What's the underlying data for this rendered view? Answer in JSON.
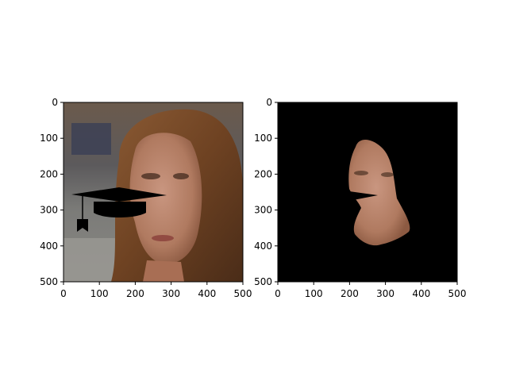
{
  "figure": {
    "panels": [
      {
        "image_description_icon": "portrait-with-graduation-cap-overlay",
        "content": "original-photo"
      },
      {
        "image_description_icon": "face-mask-on-black",
        "content": "masked-face"
      }
    ]
  },
  "chart_data": [
    {
      "type": "image",
      "title": "",
      "xlabel": "",
      "ylabel": "",
      "xlim": [
        0,
        500
      ],
      "ylim": [
        500,
        0
      ],
      "xticks": [
        0,
        100,
        200,
        300,
        400,
        500
      ],
      "yticks": [
        0,
        100,
        200,
        300,
        400,
        500
      ],
      "grid": false,
      "colors": {
        "background_left": "#5a4a3e",
        "hair": "#7a4a26",
        "skin": "#b98468",
        "cap": "#000000"
      }
    },
    {
      "type": "image",
      "title": "",
      "xlabel": "",
      "ylabel": "",
      "xlim": [
        0,
        500
      ],
      "ylim": [
        500,
        0
      ],
      "xticks": [
        0,
        100,
        200,
        300,
        400,
        500
      ],
      "yticks": [
        0,
        100,
        200,
        300,
        400,
        500
      ],
      "grid": false,
      "colors": {
        "background": "#000000",
        "skin": "#b07a60"
      }
    }
  ]
}
